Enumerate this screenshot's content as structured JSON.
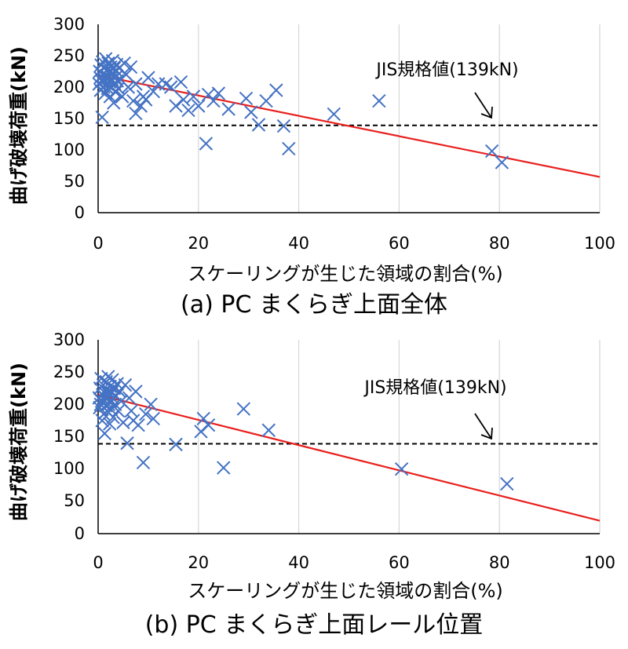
{
  "colors": {
    "marker": "#4472C4",
    "trend": "#E8201E",
    "reference": "#000000",
    "grid": "#D9D9D9",
    "axis": "#000000"
  },
  "chart_data": [
    {
      "type": "scatter",
      "caption": "(a) PC まくらぎ上面全体",
      "xlabel": "スケーリングが生じた領域の割合(%)",
      "ylabel": "曲げ破壊荷重(kN)",
      "xlim": [
        0,
        100
      ],
      "ylim": [
        0,
        300
      ],
      "x_ticks": [
        "0",
        "20",
        "40",
        "60",
        "80",
        "100"
      ],
      "y_ticks": [
        "0",
        "50",
        "100",
        "150",
        "200",
        "250",
        "300"
      ],
      "grid": {
        "vertical": true,
        "horizontal": false
      },
      "marker": "x",
      "reference_line": {
        "y": 139,
        "label": "JIS規格値(139kN)",
        "style": "dashed"
      },
      "trendline": {
        "x": [
          0,
          100
        ],
        "y": [
          219,
          57
        ]
      },
      "points": [
        [
          0.2,
          205
        ],
        [
          0.3,
          225
        ],
        [
          0.4,
          215
        ],
        [
          0.5,
          195
        ],
        [
          0.6,
          235
        ],
        [
          0.7,
          210
        ],
        [
          0.8,
          152
        ],
        [
          0.9,
          240
        ],
        [
          1.0,
          220
        ],
        [
          1.1,
          200
        ],
        [
          1.2,
          230
        ],
        [
          1.3,
          212
        ],
        [
          1.4,
          190
        ],
        [
          1.5,
          245
        ],
        [
          1.6,
          218
        ],
        [
          1.7,
          205
        ],
        [
          1.8,
          228
        ],
        [
          1.9,
          198
        ],
        [
          2.0,
          238
        ],
        [
          2.1,
          215
        ],
        [
          2.2,
          225
        ],
        [
          2.3,
          208
        ],
        [
          2.4,
          185
        ],
        [
          2.5,
          232
        ],
        [
          2.6,
          220
        ],
        [
          2.7,
          200
        ],
        [
          2.8,
          212
        ],
        [
          2.9,
          242
        ],
        [
          3.0,
          222
        ],
        [
          3.1,
          175
        ],
        [
          3.2,
          230
        ],
        [
          3.3,
          205
        ],
        [
          3.4,
          215
        ],
        [
          3.5,
          192
        ],
        [
          3.6,
          226
        ],
        [
          3.7,
          236
        ],
        [
          3.8,
          210
        ],
        [
          4.0,
          198
        ],
        [
          4.2,
          230
        ],
        [
          4.5,
          212
        ],
        [
          4.8,
          185
        ],
        [
          5.2,
          238
        ],
        [
          5.6,
          220
        ],
        [
          6.0,
          200
        ],
        [
          6.5,
          232
        ],
        [
          7.0,
          178
        ],
        [
          7.5,
          205
        ],
        [
          7.5,
          158
        ],
        [
          8.5,
          170
        ],
        [
          9.0,
          185
        ],
        [
          9.5,
          180
        ],
        [
          10.0,
          215
        ],
        [
          11.0,
          193
        ],
        [
          12.0,
          205
        ],
        [
          13.5,
          205
        ],
        [
          14.5,
          200
        ],
        [
          15.5,
          170
        ],
        [
          16.5,
          208
        ],
        [
          17.0,
          180
        ],
        [
          18.0,
          163
        ],
        [
          19.0,
          185
        ],
        [
          20.0,
          170
        ],
        [
          21.5,
          110
        ],
        [
          22.0,
          188
        ],
        [
          23.0,
          178
        ],
        [
          24.0,
          190
        ],
        [
          26.0,
          165
        ],
        [
          29.5,
          182
        ],
        [
          30.5,
          160
        ],
        [
          32.0,
          140
        ],
        [
          33.5,
          178
        ],
        [
          35.5,
          195
        ],
        [
          37.0,
          138
        ],
        [
          38.0,
          102
        ],
        [
          47.0,
          157
        ],
        [
          56.0,
          178
        ],
        [
          78.5,
          98
        ],
        [
          80.5,
          80
        ]
      ]
    },
    {
      "type": "scatter",
      "caption": "(b) PC まくらぎ上面レール位置",
      "xlabel": "スケーリングが生じた領域の割合(%)",
      "ylabel": "曲げ破壊荷重(kN)",
      "xlim": [
        0,
        100
      ],
      "ylim": [
        0,
        300
      ],
      "x_ticks": [
        "0",
        "20",
        "40",
        "60",
        "80",
        "100"
      ],
      "y_ticks": [
        "0",
        "50",
        "100",
        "150",
        "200",
        "250",
        "300"
      ],
      "grid": {
        "vertical": true,
        "horizontal": false
      },
      "marker": "x",
      "reference_line": {
        "y": 139,
        "label": "JIS規格値(139kN)",
        "style": "dashed"
      },
      "trendline": {
        "x": [
          0,
          100
        ],
        "y": [
          215,
          20
        ]
      },
      "points": [
        [
          0.2,
          210
        ],
        [
          0.3,
          195
        ],
        [
          0.4,
          225
        ],
        [
          0.5,
          200
        ],
        [
          0.6,
          240
        ],
        [
          0.7,
          205
        ],
        [
          0.8,
          175
        ],
        [
          0.9,
          215
        ],
        [
          1.0,
          230
        ],
        [
          1.1,
          185
        ],
        [
          1.2,
          212
        ],
        [
          1.3,
          155
        ],
        [
          1.4,
          222
        ],
        [
          1.5,
          198
        ],
        [
          1.6,
          235
        ],
        [
          1.7,
          208
        ],
        [
          1.8,
          190
        ],
        [
          1.9,
          220
        ],
        [
          2.0,
          243
        ],
        [
          2.1,
          200
        ],
        [
          2.2,
          215
        ],
        [
          2.3,
          170
        ],
        [
          2.4,
          228
        ],
        [
          2.5,
          205
        ],
        [
          2.6,
          192
        ],
        [
          2.7,
          218
        ],
        [
          2.8,
          238
        ],
        [
          2.9,
          210
        ],
        [
          3.0,
          180
        ],
        [
          3.2,
          225
        ],
        [
          3.4,
          200
        ],
        [
          3.6,
          213
        ],
        [
          3.8,
          232
        ],
        [
          4.0,
          190
        ],
        [
          4.3,
          220
        ],
        [
          4.6,
          205
        ],
        [
          5.0,
          172
        ],
        [
          5.4,
          230
        ],
        [
          5.8,
          140
        ],
        [
          6.2,
          210
        ],
        [
          6.6,
          190
        ],
        [
          7.0,
          175
        ],
        [
          7.5,
          220
        ],
        [
          8.0,
          168
        ],
        [
          9.0,
          110
        ],
        [
          9.5,
          185
        ],
        [
          10.5,
          200
        ],
        [
          11.0,
          178
        ],
        [
          15.5,
          138
        ],
        [
          20.5,
          158
        ],
        [
          21.0,
          178
        ],
        [
          22.0,
          168
        ],
        [
          25.0,
          102
        ],
        [
          29.0,
          193
        ],
        [
          34.0,
          160
        ],
        [
          60.5,
          100
        ],
        [
          81.5,
          77
        ]
      ]
    }
  ]
}
